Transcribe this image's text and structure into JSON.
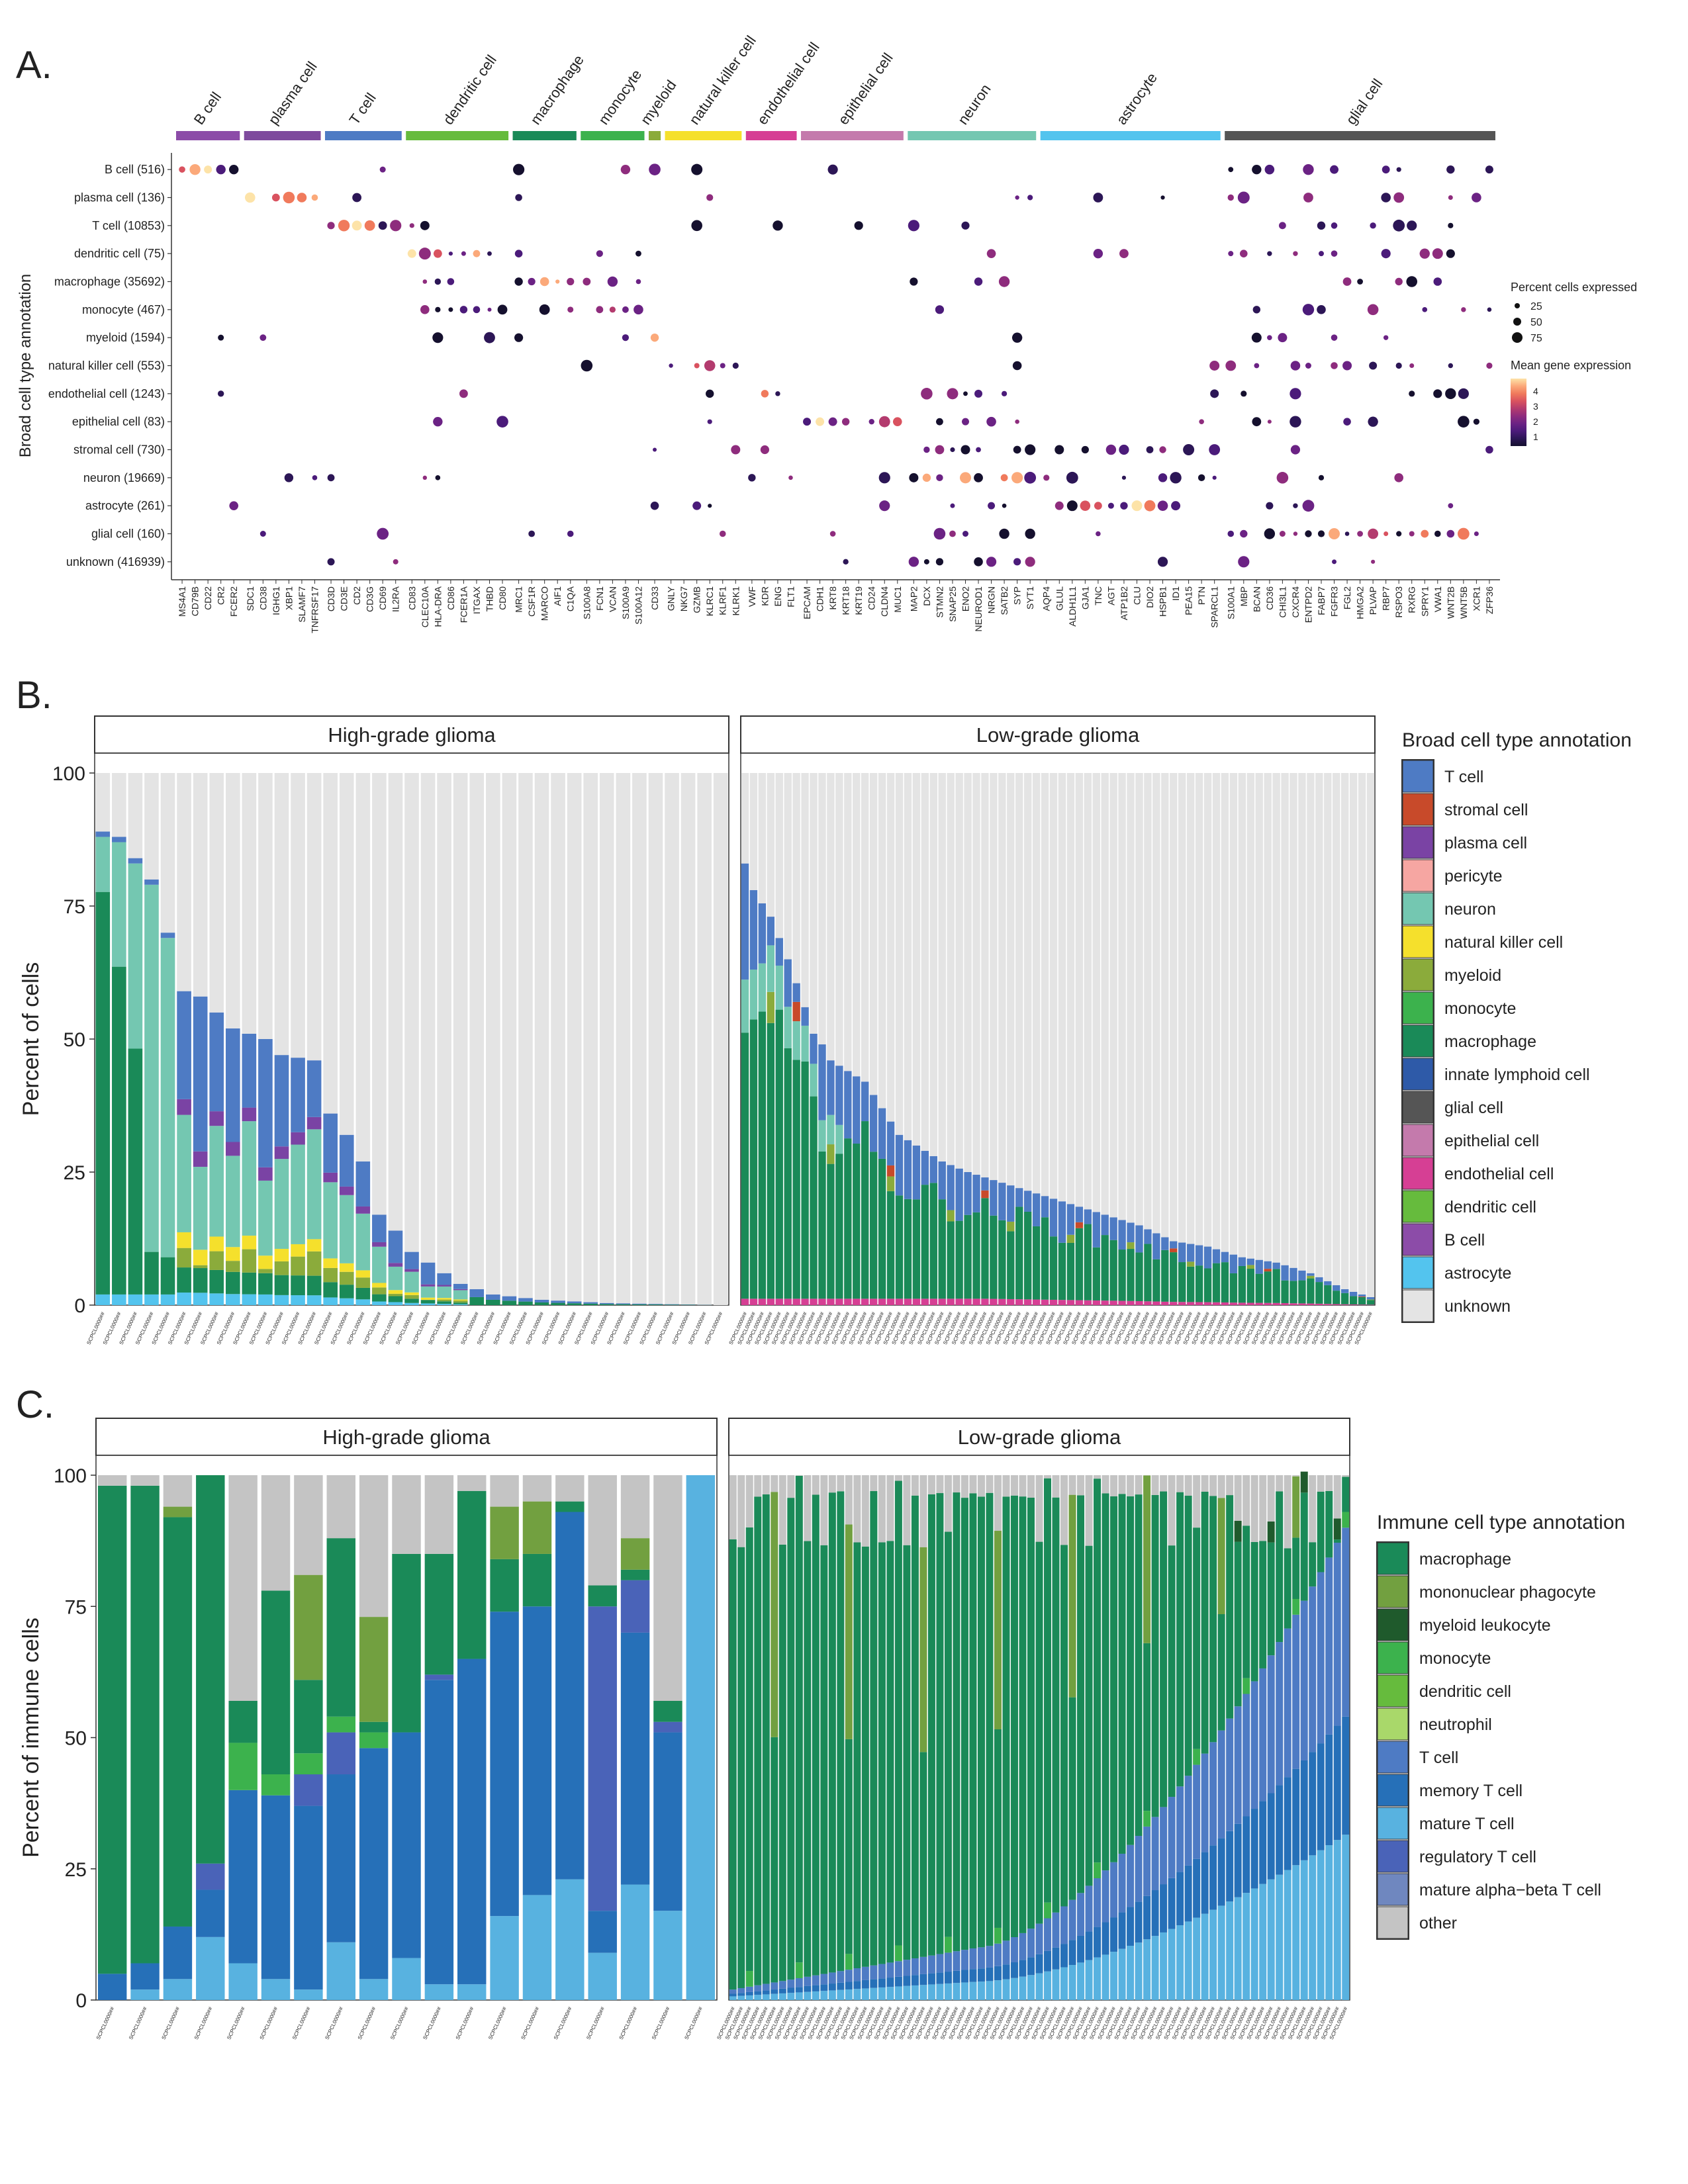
{
  "panel_labels": {
    "a": "A.",
    "b": "B.",
    "c": "C."
  },
  "chart_data": [
    {
      "type": "dotplot",
      "panel": "A.",
      "ylabel": "Broad cell type annotation",
      "rows": [
        "B cell (516)",
        "plasma cell (136)",
        "T cell (10853)",
        "dendritic cell (75)",
        "macrophage (35692)",
        "monocyte (467)",
        "myeloid (1594)",
        "natural killer cell (553)",
        "endothelial cell (1243)",
        "epithelial cell (83)",
        "stromal cell (730)",
        "neuron (19669)",
        "astrocyte (261)",
        "glial cell (160)",
        "unknown (416939)"
      ],
      "groups": [
        {
          "name": "B cell",
          "color": "#8c4ca8",
          "genes": [
            "MS4A1",
            "CD79B",
            "CD22",
            "CR2",
            "FCER2"
          ]
        },
        {
          "name": "plasma cell",
          "color": "#7e4a9d",
          "genes": [
            "SDC1",
            "CD38",
            "IGHG1",
            "XBP1",
            "SLAMF7",
            "TNFRSF17"
          ]
        },
        {
          "name": "T cell",
          "color": "#4e7bc4",
          "genes": [
            "CD3D",
            "CD3E",
            "CD2",
            "CD3G",
            "CD69",
            "IL2RA"
          ]
        },
        {
          "name": "dendritic cell",
          "color": "#66bb3d",
          "genes": [
            "CD83",
            "CLEC10A",
            "HLA-DRA",
            "CD86",
            "FCER1A",
            "ITGAX",
            "THBD",
            "CD80"
          ]
        },
        {
          "name": "macrophage",
          "color": "#1a8a58",
          "genes": [
            "MRC1",
            "CSF1R",
            "MARCO",
            "AIF1",
            "C1QA"
          ]
        },
        {
          "name": "monocyte",
          "color": "#3cb24d",
          "genes": [
            "S100A8",
            "FCN1",
            "VCAN",
            "S100A9",
            "S100A12"
          ]
        },
        {
          "name": "myeloid",
          "color": "#8bab3b",
          "genes": [
            "CD33"
          ]
        },
        {
          "name": "natural killer cell",
          "color": "#f5e02c",
          "genes": [
            "GNLY",
            "NKG7",
            "GZMB",
            "KLRC1",
            "KLRF1",
            "KLRK1"
          ]
        },
        {
          "name": "endothelial cell",
          "color": "#d63f94",
          "genes": [
            "VWF",
            "KDR",
            "ENG",
            "FLT1"
          ]
        },
        {
          "name": "epithelial cell",
          "color": "#c47aac",
          "genes": [
            "EPCAM",
            "CDH1",
            "KRT8",
            "KRT18",
            "KRT19",
            "CD24",
            "CLDN4",
            "MUC1"
          ]
        },
        {
          "name": "neuron",
          "color": "#74c7b1",
          "genes": [
            "MAP2",
            "DCX",
            "STMN2",
            "SNAP25",
            "ENO2",
            "NEUROD1",
            "NRGN",
            "SATB2",
            "SYP",
            "SYT1"
          ]
        },
        {
          "name": "astrocyte",
          "color": "#53c4ee",
          "genes": [
            "AQP4",
            "GLUL",
            "ALDH1L1",
            "GJA1",
            "TNC",
            "AGT",
            "ATP1B2",
            "CLU",
            "DIO2",
            "HSPB1",
            "ID1",
            "PEA15",
            "PTN",
            "SPARCL1"
          ]
        },
        {
          "name": "glial cell",
          "color": "#555555",
          "genes": [
            "S100A1",
            "MBP",
            "BCAN",
            "CD36",
            "CHI3L1",
            "CXCR4",
            "ENTPD2",
            "FABP7",
            "FGFR3",
            "FGL2",
            "HMGA2",
            "PLVAP",
            "RBP7",
            "RSPO3",
            "RXRG",
            "SPRY1",
            "VWA1",
            "WNT2B",
            "WNT5B",
            "XCR1",
            "ZFP36"
          ]
        }
      ],
      "size_legend": {
        "title": "Percent cells expressed",
        "values": [
          25,
          50,
          75
        ]
      },
      "color_legend": {
        "title": "Mean gene expression",
        "ticks": [
          1,
          2,
          3,
          4
        ]
      }
    },
    {
      "type": "stacked-bar",
      "panel": "B.",
      "ylabel": "Percent of cells",
      "ylim": [
        0,
        100
      ],
      "yticks": [
        0,
        25,
        50,
        75,
        100
      ],
      "facets": [
        {
          "title": "High-grade glioma",
          "n_bars": 39,
          "tick_label": "SCPCL0000##",
          "profile": [
            [
              0,
              89
            ],
            [
              1,
              88
            ],
            [
              3,
              80
            ],
            [
              4,
              70
            ],
            [
              5,
              59
            ],
            [
              6,
              58
            ],
            [
              8,
              52
            ],
            [
              10,
              50
            ],
            [
              11,
              47
            ],
            [
              13,
              46
            ],
            [
              14,
              36
            ],
            [
              15,
              32
            ],
            [
              16,
              27
            ],
            [
              17,
              17
            ],
            [
              18,
              14
            ],
            [
              19,
              10
            ],
            [
              20,
              8
            ],
            [
              21,
              6
            ],
            [
              22,
              4
            ],
            [
              24,
              2
            ],
            [
              27,
              1
            ],
            [
              31,
              0.4
            ],
            [
              38,
              0
            ]
          ]
        },
        {
          "title": "Low-grade glioma",
          "n_bars": 74,
          "tick_label": "SCPCL0000##",
          "profile": [
            [
              0,
              83
            ],
            [
              1,
              78
            ],
            [
              3,
              73
            ],
            [
              5,
              65
            ],
            [
              7,
              56
            ],
            [
              8,
              51
            ],
            [
              9,
              49
            ],
            [
              10,
              46
            ],
            [
              12,
              44
            ],
            [
              14,
              42
            ],
            [
              16,
              37
            ],
            [
              18,
              32
            ],
            [
              20,
              30
            ],
            [
              23,
              27
            ],
            [
              26,
              25
            ],
            [
              30,
              23
            ],
            [
              34,
              21
            ],
            [
              38,
              19
            ],
            [
              42,
              17
            ],
            [
              46,
              15
            ],
            [
              50,
              12
            ],
            [
              54,
              11
            ],
            [
              58,
              9
            ],
            [
              62,
              8
            ],
            [
              66,
              6
            ],
            [
              70,
              3
            ],
            [
              73,
              1.5
            ]
          ]
        }
      ],
      "legend": {
        "title": "Broad cell type annotation",
        "items": [
          {
            "label": "T cell",
            "color": "#4e7bc4"
          },
          {
            "label": "stromal cell",
            "color": "#c84a2a"
          },
          {
            "label": "plasma cell",
            "color": "#7a43a4"
          },
          {
            "label": "pericyte",
            "color": "#f6a6a2"
          },
          {
            "label": "neuron",
            "color": "#74c7b1"
          },
          {
            "label": "natural killer cell",
            "color": "#f5e02c"
          },
          {
            "label": "myeloid",
            "color": "#8bab3b"
          },
          {
            "label": "monocyte",
            "color": "#3cb24d"
          },
          {
            "label": "macrophage",
            "color": "#1a8a58"
          },
          {
            "label": "innate lymphoid cell",
            "color": "#2e5aa8"
          },
          {
            "label": "glial cell",
            "color": "#555555"
          },
          {
            "label": "epithelial cell",
            "color": "#c47aac"
          },
          {
            "label": "endothelial cell",
            "color": "#d63f94"
          },
          {
            "label": "dendritic cell",
            "color": "#66bb3d"
          },
          {
            "label": "B cell",
            "color": "#8c4ca8"
          },
          {
            "label": "astrocyte",
            "color": "#53c4ee"
          },
          {
            "label": "unknown",
            "color": "#e4e4e4"
          }
        ]
      }
    },
    {
      "type": "stacked-bar",
      "panel": "C.",
      "ylabel": "Percent of immune cells",
      "ylim": [
        0,
        100
      ],
      "yticks": [
        0,
        25,
        50,
        75,
        100
      ],
      "facets": [
        {
          "title": "High-grade glioma",
          "n_bars": 19,
          "tick_label": "SCPCL0000##"
        },
        {
          "title": "Low-grade glioma",
          "n_bars": 75,
          "tick_label": "SCPCL0000##"
        }
      ],
      "legend": {
        "title": "Immune cell type annotation",
        "items": [
          {
            "label": "macrophage",
            "color": "#1a8a58"
          },
          {
            "label": "mononuclear phagocyte",
            "color": "#72a040"
          },
          {
            "label": "myeloid leukocyte",
            "color": "#1f5a2c"
          },
          {
            "label": "monocyte",
            "color": "#3cb24d"
          },
          {
            "label": "dendritic cell",
            "color": "#66bb3d"
          },
          {
            "label": "neutrophil",
            "color": "#a9d86a"
          },
          {
            "label": "T cell",
            "color": "#4e7bc4"
          },
          {
            "label": "memory T cell",
            "color": "#2670b8"
          },
          {
            "label": "mature T cell",
            "color": "#58b2e0"
          },
          {
            "label": "regulatory T cell",
            "color": "#4a63b8"
          },
          {
            "label": "mature alpha−beta T cell",
            "color": "#6f87bf"
          },
          {
            "label": "other",
            "color": "#c4c4c4"
          }
        ]
      }
    }
  ]
}
